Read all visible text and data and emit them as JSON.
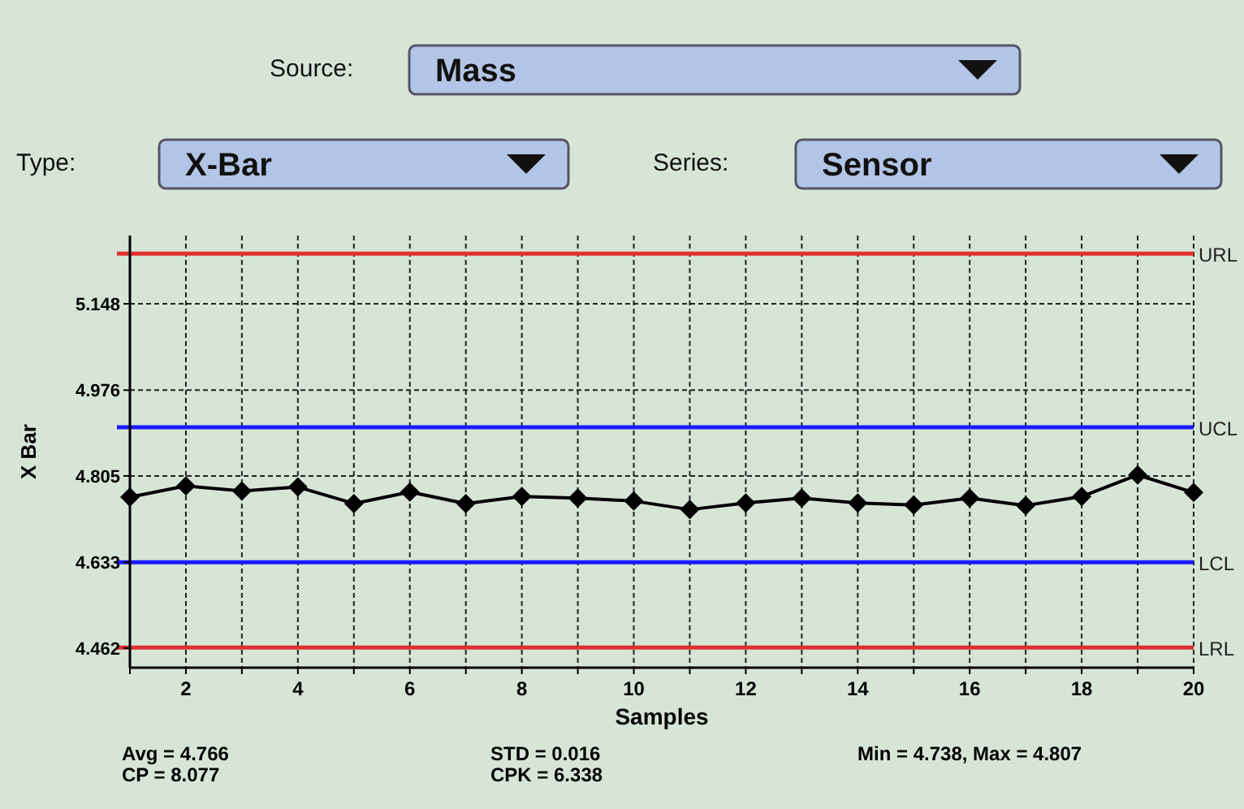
{
  "chart_data": {
    "type": "line",
    "xlabel": "Samples",
    "ylabel": "X Bar",
    "x": [
      1,
      2,
      3,
      4,
      5,
      6,
      7,
      8,
      9,
      10,
      11,
      12,
      13,
      14,
      15,
      16,
      17,
      18,
      19,
      20
    ],
    "series": [
      {
        "color": "#000000",
        "values": [
          4.763,
          4.785,
          4.775,
          4.783,
          4.75,
          4.773,
          4.75,
          4.764,
          4.761,
          4.755,
          4.738,
          4.751,
          4.761,
          4.751,
          4.747,
          4.761,
          4.746,
          4.764,
          4.807,
          4.772
        ]
      }
    ],
    "xlim": [
      1,
      20
    ],
    "xticks": [
      {
        "value": 1,
        "label": null
      },
      2,
      {
        "value": 3,
        "label": null
      },
      4,
      {
        "value": 5,
        "label": null
      },
      6,
      {
        "value": 7,
        "label": null
      },
      8,
      {
        "value": 9,
        "label": null
      },
      10,
      {
        "value": 11,
        "label": null
      },
      12,
      {
        "value": 13,
        "label": null
      },
      14,
      {
        "value": 15,
        "label": null
      },
      16,
      {
        "value": 17,
        "label": null
      },
      18,
      {
        "value": 19,
        "label": null
      },
      20
    ],
    "ylim": [
      4.423,
      5.284
    ],
    "yticks": [
      4.462,
      4.633,
      4.805,
      4.976,
      5.148
    ],
    "grid": true,
    "marker": "diamond",
    "line_style": "solid",
    "ref_lines": [
      {
        "axis": "y",
        "value": 5.248,
        "label": "URL",
        "color": "#e03030"
      },
      {
        "axis": "y",
        "value": 4.902,
        "label": "UCL",
        "color": "#1a1aff"
      },
      {
        "axis": "y",
        "value": 4.633,
        "label": "LCL",
        "color": "#1a1aff"
      },
      {
        "axis": "y",
        "value": 4.463,
        "label": "LRL",
        "color": "#e03030"
      }
    ],
    "annotations": [
      "Source:",
      "Mass",
      "Type:",
      "X-Bar",
      "Series:",
      "Sensor",
      "Avg = 4.766",
      "CP = 8.077",
      "STD = 0.016",
      "CPK = 6.338",
      "Min = 4.738, Max = 4.807"
    ]
  }
}
